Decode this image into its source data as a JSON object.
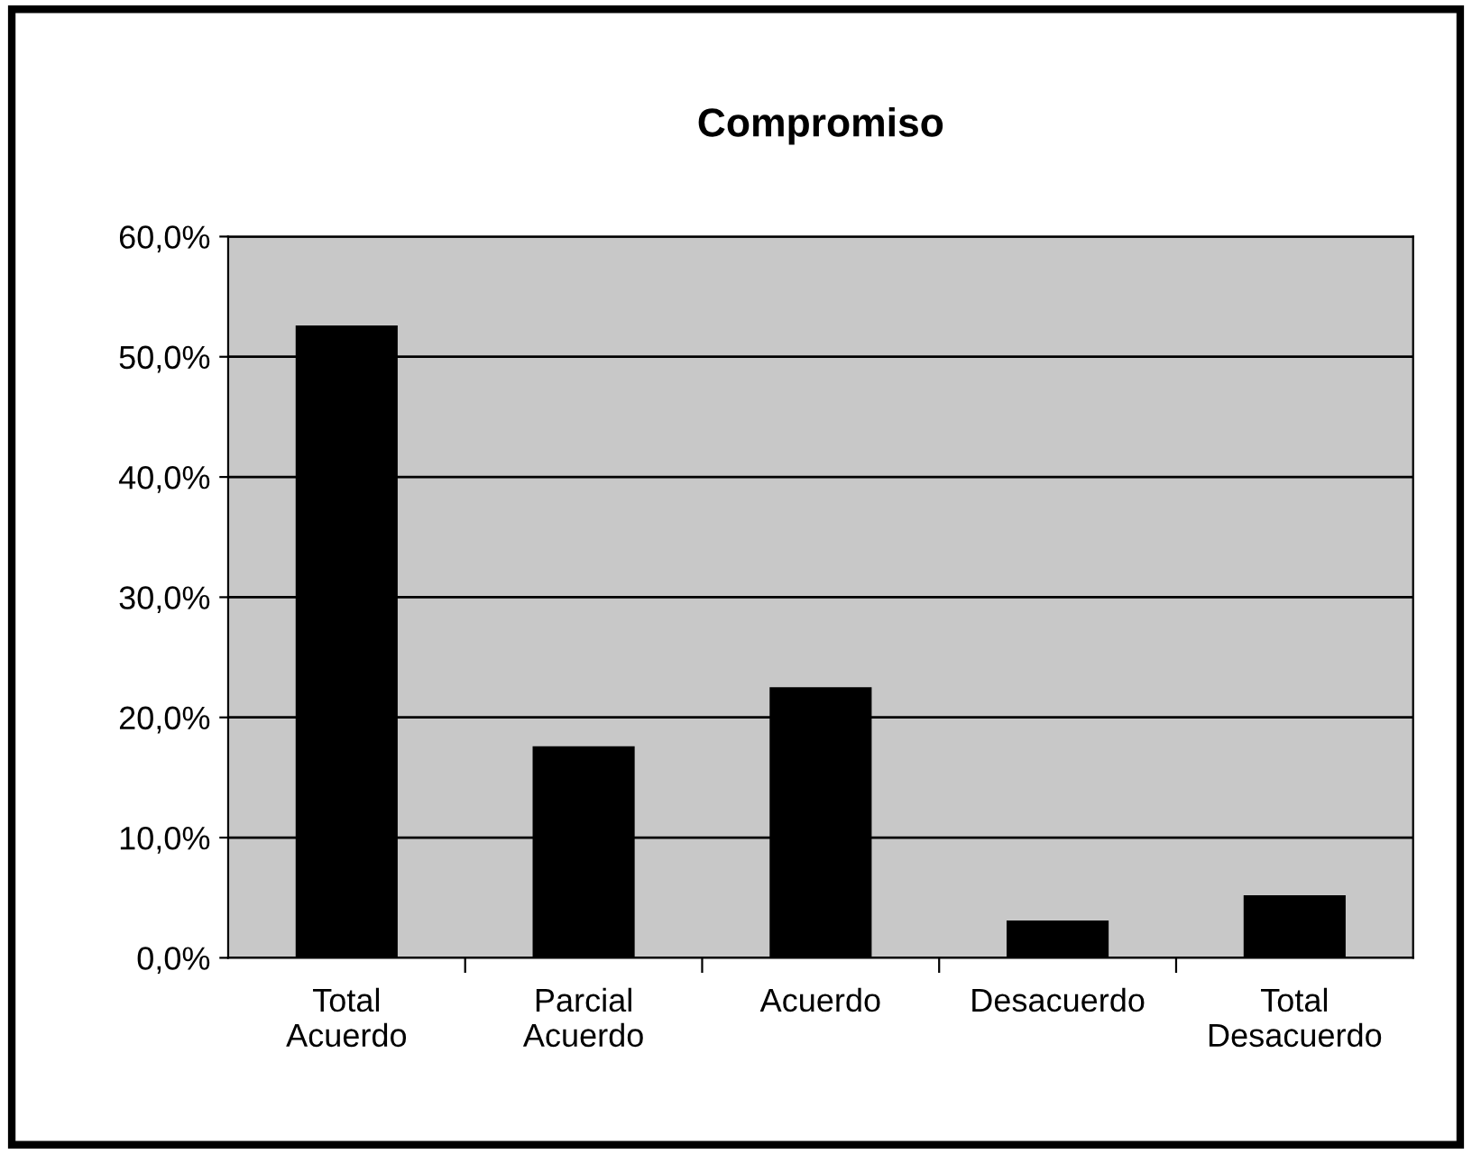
{
  "chart_data": {
    "type": "bar",
    "title": "Compromiso",
    "categories": [
      "Total\nAcuerdo",
      "Parcial\nAcuerdo",
      "Acuerdo",
      "Desacuerdo",
      "Total\nDesacuerdo"
    ],
    "values": [
      52.5,
      17.5,
      22.4,
      3.0,
      5.1
    ],
    "color": "#000000",
    "ylim": [
      0,
      60
    ],
    "yticks": [
      {
        "value": 0,
        "label": "0,0%"
      },
      {
        "value": 10,
        "label": "10,0%"
      },
      {
        "value": 20,
        "label": "20,0%"
      },
      {
        "value": 30,
        "label": "30,0%"
      },
      {
        "value": 40,
        "label": "40,0%"
      },
      {
        "value": 50,
        "label": "50,0%"
      },
      {
        "value": 60,
        "label": "60,0%"
      }
    ],
    "grid": "y",
    "legend": false
  }
}
